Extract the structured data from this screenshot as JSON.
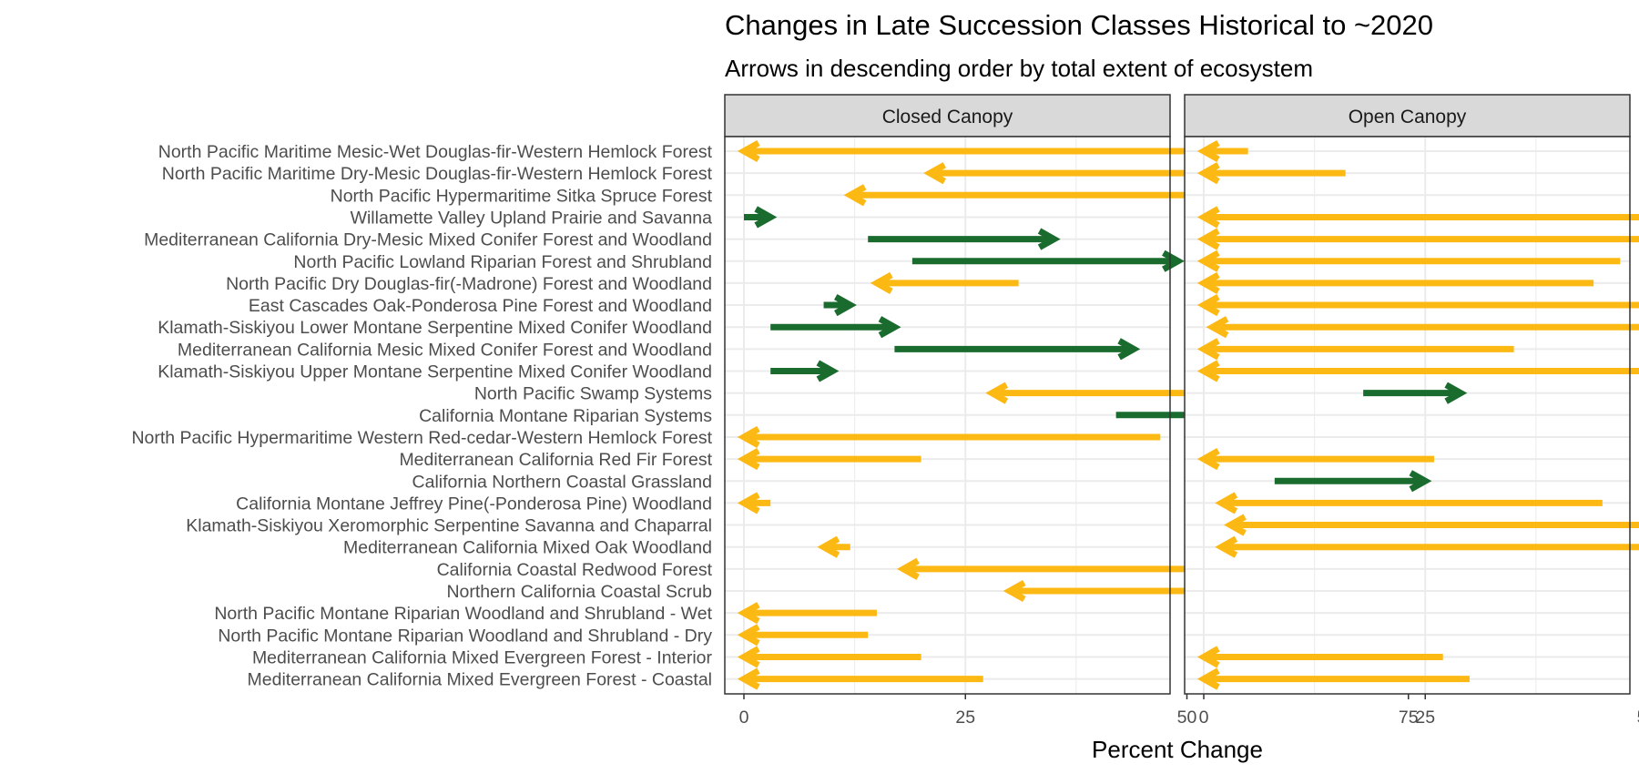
{
  "chart_data": {
    "type": "arrow",
    "title": "Changes in Late Succession Classes Historical to ~2020",
    "subtitle": "Arrows in descending order by total extent of ecosystem",
    "xlabel": "Percent Change",
    "ylabel": "",
    "xlim": [
      -3,
      95
    ],
    "xticks": [
      0,
      25,
      50,
      75
    ],
    "grid": true,
    "colors": {
      "increase": "#1a6b2e",
      "decrease": "#fcb813"
    },
    "categories": [
      "North Pacific Maritime Mesic-Wet Douglas-fir-Western Hemlock Forest",
      "North Pacific Maritime Dry-Mesic Douglas-fir-Western Hemlock Forest",
      "North Pacific Hypermaritime Sitka Spruce Forest",
      "Willamette Valley Upland Prairie and Savanna",
      "Mediterranean California Dry-Mesic Mixed Conifer Forest and Woodland",
      "North Pacific Lowland Riparian Forest and Shrubland",
      "North Pacific Dry Douglas-fir(-Madrone) Forest and Woodland",
      "East Cascades Oak-Ponderosa Pine Forest and Woodland",
      "Klamath-Siskiyou Lower Montane Serpentine Mixed Conifer Woodland",
      "Mediterranean California Mesic Mixed Conifer Forest and Woodland",
      "Klamath-Siskiyou Upper Montane Serpentine Mixed Conifer Woodland",
      "North Pacific Swamp Systems",
      "California Montane Riparian Systems",
      "North Pacific Hypermaritime Western Red-cedar-Western Hemlock Forest",
      "Mediterranean California Red Fir Forest",
      "California Northern Coastal Grassland",
      "California Montane Jeffrey Pine(-Ponderosa Pine) Woodland",
      "Klamath-Siskiyou Xeromorphic Serpentine Savanna and Chaparral",
      "Mediterranean California Mixed Oak Woodland",
      "California Coastal Redwood Forest",
      "Northern California Coastal Scrub",
      "North Pacific Montane Riparian Woodland and Shrubland - Wet",
      "North Pacific Montane Riparian Woodland and Shrubland - Dry",
      "Mediterranean California Mixed Evergreen Forest - Interior",
      "Mediterranean California Mixed Evergreen Forest - Coastal"
    ],
    "panels": [
      {
        "name": "Closed Canopy",
        "arrows": [
          {
            "category": 0,
            "from": 71,
            "to": 0
          },
          {
            "category": 1,
            "from": 55,
            "to": 21
          },
          {
            "category": 2,
            "from": 73,
            "to": 12
          },
          {
            "category": 3,
            "from": 0,
            "to": 3
          },
          {
            "category": 4,
            "from": 14,
            "to": 35
          },
          {
            "category": 5,
            "from": 19,
            "to": 49
          },
          {
            "category": 6,
            "from": 31,
            "to": 15
          },
          {
            "category": 7,
            "from": 9,
            "to": 12
          },
          {
            "category": 8,
            "from": 3,
            "to": 17
          },
          {
            "category": 9,
            "from": 17,
            "to": 44
          },
          {
            "category": 10,
            "from": 3,
            "to": 10
          },
          {
            "category": 11,
            "from": 69,
            "to": 28
          },
          {
            "category": 12,
            "from": 42,
            "to": 90
          },
          {
            "category": 13,
            "from": 47,
            "to": 0
          },
          {
            "category": 14,
            "from": 20,
            "to": 0
          },
          {
            "category": 16,
            "from": 3,
            "to": 0
          },
          {
            "category": 18,
            "from": 12,
            "to": 9
          },
          {
            "category": 19,
            "from": 92,
            "to": 18
          },
          {
            "category": 20,
            "from": 80,
            "to": 30
          },
          {
            "category": 21,
            "from": 15,
            "to": 0
          },
          {
            "category": 22,
            "from": 14,
            "to": 0
          },
          {
            "category": 23,
            "from": 20,
            "to": 0
          },
          {
            "category": 24,
            "from": 27,
            "to": 0
          }
        ]
      },
      {
        "name": "Open Canopy",
        "arrows": [
          {
            "category": 0,
            "from": 5,
            "to": 0
          },
          {
            "category": 1,
            "from": 16,
            "to": 0
          },
          {
            "category": 3,
            "from": 68,
            "to": 0
          },
          {
            "category": 4,
            "from": 63,
            "to": 0
          },
          {
            "category": 5,
            "from": 47,
            "to": 0
          },
          {
            "category": 6,
            "from": 44,
            "to": 0
          },
          {
            "category": 7,
            "from": 66,
            "to": 0
          },
          {
            "category": 8,
            "from": 53,
            "to": 1
          },
          {
            "category": 9,
            "from": 35,
            "to": 0
          },
          {
            "category": 10,
            "from": 54,
            "to": 0
          },
          {
            "category": 11,
            "from": 18,
            "to": 29
          },
          {
            "category": 14,
            "from": 26,
            "to": 0
          },
          {
            "category": 15,
            "from": 8,
            "to": 25
          },
          {
            "category": 16,
            "from": 45,
            "to": 2
          },
          {
            "category": 17,
            "from": 55,
            "to": 3
          },
          {
            "category": 18,
            "from": 54,
            "to": 2
          },
          {
            "category": 23,
            "from": 27,
            "to": 0
          },
          {
            "category": 24,
            "from": 30,
            "to": 0
          }
        ]
      }
    ]
  }
}
